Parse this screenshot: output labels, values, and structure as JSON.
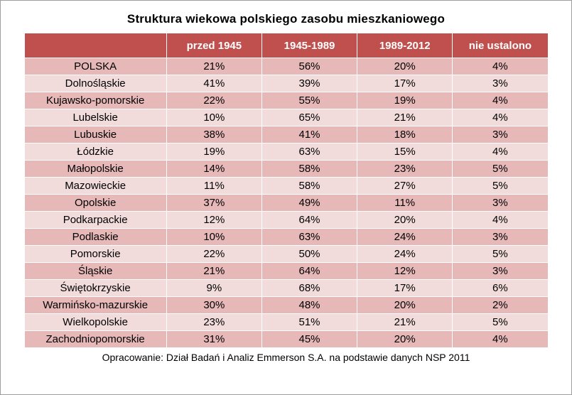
{
  "title": "Struktura wiekowa polskiego zasobu mieszkaniowego",
  "footer": "Opracowanie: Dział Badań i Analiz Emmerson S.A. na podstawie danych NSP 2011",
  "colors": {
    "header_bg": "#c0504d",
    "header_text": "#ffffff",
    "row_odd": "#e6b8b7",
    "row_even": "#f2dcdb",
    "body_text": "#000000"
  },
  "chart_data": {
    "type": "table",
    "title": "Struktura wiekowa polskiego zasobu mieszkaniowego",
    "columns": [
      "",
      "przed 1945",
      "1945-1989",
      "1989-2012",
      "nie ustalono"
    ],
    "rows": [
      {
        "region": "POLSKA",
        "values": [
          "21%",
          "56%",
          "20%",
          "4%"
        ]
      },
      {
        "region": "Dolnośląskie",
        "values": [
          "41%",
          "39%",
          "17%",
          "3%"
        ]
      },
      {
        "region": "Kujawsko-pomorskie",
        "values": [
          "22%",
          "55%",
          "19%",
          "4%"
        ]
      },
      {
        "region": "Lubelskie",
        "values": [
          "10%",
          "65%",
          "21%",
          "4%"
        ]
      },
      {
        "region": "Lubuskie",
        "values": [
          "38%",
          "41%",
          "18%",
          "3%"
        ]
      },
      {
        "region": "Łódzkie",
        "values": [
          "19%",
          "63%",
          "15%",
          "4%"
        ]
      },
      {
        "region": "Małopolskie",
        "values": [
          "14%",
          "58%",
          "23%",
          "5%"
        ]
      },
      {
        "region": "Mazowieckie",
        "values": [
          "11%",
          "58%",
          "27%",
          "5%"
        ]
      },
      {
        "region": "Opolskie",
        "values": [
          "37%",
          "49%",
          "11%",
          "3%"
        ]
      },
      {
        "region": "Podkarpackie",
        "values": [
          "12%",
          "64%",
          "20%",
          "4%"
        ]
      },
      {
        "region": "Podlaskie",
        "values": [
          "10%",
          "63%",
          "24%",
          "3%"
        ]
      },
      {
        "region": "Pomorskie",
        "values": [
          "22%",
          "50%",
          "24%",
          "5%"
        ]
      },
      {
        "region": "Śląskie",
        "values": [
          "21%",
          "64%",
          "12%",
          "3%"
        ]
      },
      {
        "region": "Świętokrzyskie",
        "values": [
          "9%",
          "68%",
          "17%",
          "6%"
        ]
      },
      {
        "region": "Warmińsko-mazurskie",
        "values": [
          "30%",
          "48%",
          "20%",
          "2%"
        ]
      },
      {
        "region": "Wielkopolskie",
        "values": [
          "23%",
          "51%",
          "21%",
          "5%"
        ]
      },
      {
        "region": "Zachodniopomorskie",
        "values": [
          "31%",
          "45%",
          "20%",
          "4%"
        ]
      }
    ]
  }
}
